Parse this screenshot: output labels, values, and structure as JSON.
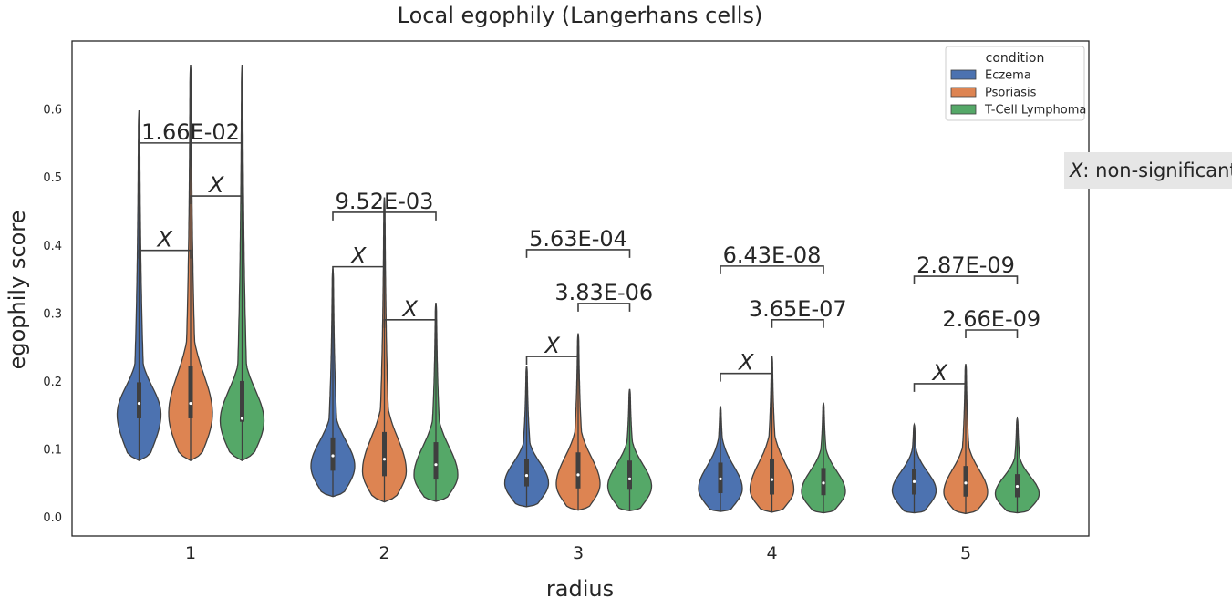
{
  "chart_data": {
    "type": "violin",
    "title": "Local egophily (Langerhans cells)",
    "xlabel": "radius",
    "ylabel": "egophily score",
    "categories": [
      "1",
      "2",
      "3",
      "4",
      "5"
    ],
    "ylim": [
      -0.028,
      0.7
    ],
    "yticks": [
      0.0,
      0.1,
      0.2,
      0.3,
      0.4,
      0.5,
      0.6
    ],
    "ytick_labels": [
      "0.0",
      "0.1",
      "0.2",
      "0.3",
      "0.4",
      "0.5",
      "0.6"
    ],
    "grid": false,
    "legend": {
      "title": "condition",
      "placement": "top-right"
    },
    "series": [
      {
        "name": "Eczema",
        "color": "#4c72b0",
        "violins": [
          {
            "min": 0.083,
            "max": 0.598,
            "median": 0.167,
            "q1": 0.145,
            "q3": 0.198
          },
          {
            "min": 0.03,
            "max": 0.365,
            "median": 0.09,
            "q1": 0.068,
            "q3": 0.117
          },
          {
            "min": 0.015,
            "max": 0.222,
            "median": 0.061,
            "q1": 0.045,
            "q3": 0.085
          },
          {
            "min": 0.008,
            "max": 0.163,
            "median": 0.056,
            "q1": 0.035,
            "q3": 0.08
          },
          {
            "min": 0.006,
            "max": 0.136,
            "median": 0.052,
            "q1": 0.033,
            "q3": 0.07
          }
        ]
      },
      {
        "name": "Psoriasis",
        "color": "#dd8452",
        "violins": [
          {
            "min": 0.083,
            "max": 0.665,
            "median": 0.167,
            "q1": 0.145,
            "q3": 0.222
          },
          {
            "min": 0.022,
            "max": 0.47,
            "median": 0.085,
            "q1": 0.06,
            "q3": 0.125
          },
          {
            "min": 0.01,
            "max": 0.27,
            "median": 0.062,
            "q1": 0.042,
            "q3": 0.095
          },
          {
            "min": 0.007,
            "max": 0.237,
            "median": 0.055,
            "q1": 0.033,
            "q3": 0.086
          },
          {
            "min": 0.005,
            "max": 0.225,
            "median": 0.05,
            "q1": 0.03,
            "q3": 0.075
          }
        ]
      },
      {
        "name": "T-Cell Lymphoma",
        "color": "#55a868",
        "violins": [
          {
            "min": 0.083,
            "max": 0.665,
            "median": 0.145,
            "q1": 0.14,
            "q3": 0.2
          },
          {
            "min": 0.023,
            "max": 0.315,
            "median": 0.077,
            "q1": 0.055,
            "q3": 0.11
          },
          {
            "min": 0.009,
            "max": 0.188,
            "median": 0.056,
            "q1": 0.04,
            "q3": 0.083
          },
          {
            "min": 0.006,
            "max": 0.168,
            "median": 0.05,
            "q1": 0.032,
            "q3": 0.072
          },
          {
            "min": 0.006,
            "max": 0.145,
            "median": 0.045,
            "q1": 0.029,
            "q3": 0.063
          }
        ]
      }
    ],
    "annotations": [
      {
        "radius": "1",
        "from": "Eczema",
        "to": "T-Cell Lymphoma",
        "label": "1.66E-02",
        "y": 0.55,
        "h": 0.075
      },
      {
        "radius": "1",
        "from": "Psoriasis",
        "to": "T-Cell Lymphoma",
        "label": "X",
        "y": 0.472,
        "h": 0.012,
        "italic": true
      },
      {
        "radius": "1",
        "from": "Eczema",
        "to": "Psoriasis",
        "label": "X",
        "y": 0.392,
        "h": 0.012,
        "italic": true
      },
      {
        "radius": "2",
        "from": "Eczema",
        "to": "T-Cell Lymphoma",
        "label": "9.52E-03",
        "y": 0.448,
        "h": 0.012
      },
      {
        "radius": "2",
        "from": "Eczema",
        "to": "Psoriasis",
        "label": "X",
        "y": 0.368,
        "h": 0.012,
        "italic": true
      },
      {
        "radius": "2",
        "from": "Psoriasis",
        "to": "T-Cell Lymphoma",
        "label": "X",
        "y": 0.29,
        "h": 0.012,
        "italic": true
      },
      {
        "radius": "3",
        "from": "Eczema",
        "to": "T-Cell Lymphoma",
        "label": "5.63E-04",
        "y": 0.393,
        "h": 0.012
      },
      {
        "radius": "3",
        "from": "Psoriasis",
        "to": "T-Cell Lymphoma",
        "label": "3.83E-06",
        "y": 0.314,
        "h": 0.012
      },
      {
        "radius": "3",
        "from": "Eczema",
        "to": "Psoriasis",
        "label": "X",
        "y": 0.236,
        "h": 0.012,
        "italic": true
      },
      {
        "radius": "4",
        "from": "Eczema",
        "to": "T-Cell Lymphoma",
        "label": "6.43E-08",
        "y": 0.369,
        "h": 0.012
      },
      {
        "radius": "4",
        "from": "Psoriasis",
        "to": "T-Cell Lymphoma",
        "label": "3.65E-07",
        "y": 0.29,
        "h": 0.012
      },
      {
        "radius": "4",
        "from": "Eczema",
        "to": "Psoriasis",
        "label": "X",
        "y": 0.211,
        "h": 0.012,
        "italic": true
      },
      {
        "radius": "5",
        "from": "Eczema",
        "to": "T-Cell Lymphoma",
        "label": "2.87E-09",
        "y": 0.354,
        "h": 0.012
      },
      {
        "radius": "5",
        "from": "Psoriasis",
        "to": "T-Cell Lymphoma",
        "label": "2.66E-09",
        "y": 0.275,
        "h": 0.012
      },
      {
        "radius": "5",
        "from": "Eczema",
        "to": "Psoriasis",
        "label": "X",
        "y": 0.196,
        "h": 0.012,
        "italic": true
      }
    ],
    "note": {
      "symbol": "X",
      "text": ": non-significant"
    }
  }
}
